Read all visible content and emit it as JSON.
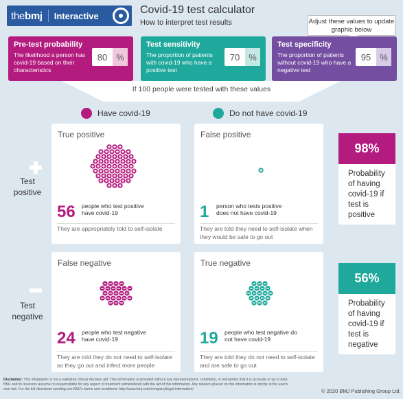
{
  "header": {
    "logo_brand": "the",
    "logo_brand_bold": "bmj",
    "logo_section": "Interactive",
    "title": "Covid-19 test calculator",
    "subtitle": "How to interpret test results",
    "tooltip": "Adjust these values to update graphic below"
  },
  "params": [
    {
      "label": "Pre-test probability",
      "desc": "The likelihood a person has covid-19 based on their characteristics",
      "value": "80",
      "unit": "%",
      "color": "#b31b7e"
    },
    {
      "label": "Test sensitivity",
      "desc": "The proportion of patients with covid-19 who have a positive test",
      "value": "70",
      "unit": "%",
      "color": "#1fa89c"
    },
    {
      "label": "Test specificity",
      "desc": "The proportion of patients without covid-19 who have a negative test",
      "value": "95",
      "unit": "%",
      "color": "#744ea0"
    }
  ],
  "population_text": "If 100 people were tested with these values",
  "legend": {
    "have": "Have covid-19",
    "not_have": "Do not have covid-19",
    "have_color": "#b31b7e",
    "not_have_color": "#1fa89c"
  },
  "rows": {
    "positive": "Test positive",
    "negative": "Test negative"
  },
  "cards": {
    "tp": {
      "title": "True positive",
      "count": "56",
      "desc": "people who test positive have covid-19",
      "footer": "They are appropriately told to self-isolate",
      "icon": "plus-icon"
    },
    "fp": {
      "title": "False positive",
      "count": "1",
      "desc": "person who tests positive does not have covid-19",
      "footer": "They are told they need to self-isolate when they would be safe to go out",
      "icon": "plus-icon"
    },
    "fn": {
      "title": "False negative",
      "count": "24",
      "desc": "people who test negative have covid-19",
      "footer": "They are told they do not need to self-isolate so they go out and infect more people",
      "icon": "minus-icon"
    },
    "tn": {
      "title": "True negative",
      "count": "19",
      "desc": "people who test negative do not have covid-19",
      "footer": "They are told they do not need to self-isolate and are safe to go out",
      "icon": "minus-icon"
    }
  },
  "prob_positive": {
    "value": "98%",
    "text": "Probability of having covid-19 if test is positive",
    "color": "#b31b7e"
  },
  "prob_negative": {
    "value": "56%",
    "text": "Probability of having covid-19 if test is negative",
    "color": "#1fa89c"
  },
  "disclaimer_label": "Disclaimer:",
  "disclaimer": "This infographic is not a validated clinical decision aid. This information is provided without any representations, conditions, or warranties that it is accurate or up to date. BMJ and its licensors assume no responsibility for any aspect of treatment administered with the aid of this information. Any reliance placed on this information is strictly at the user's own risk. For the full disclaimer wording see BMJ's terms and conditions: http://www.bmj.com/company/legal-information/",
  "copyright": "© 2020 BMJ Publishing Group Ltd."
}
